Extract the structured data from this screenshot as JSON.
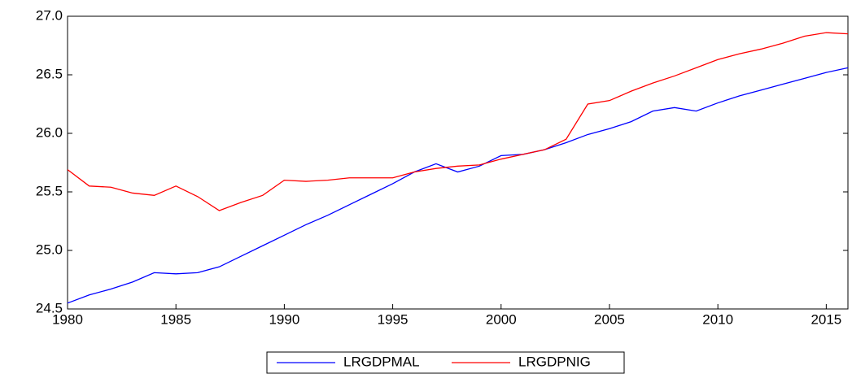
{
  "chart_data": {
    "type": "line",
    "x": [
      1980,
      1981,
      1982,
      1983,
      1984,
      1985,
      1986,
      1987,
      1988,
      1989,
      1990,
      1991,
      1992,
      1993,
      1994,
      1995,
      1996,
      1997,
      1998,
      1999,
      2000,
      2001,
      2002,
      2003,
      2004,
      2005,
      2006,
      2007,
      2008,
      2009,
      2010,
      2011,
      2012,
      2013,
      2014,
      2015,
      2016
    ],
    "series": [
      {
        "name": "LRGDPMAL",
        "color": "#0000ff",
        "values": [
          24.55,
          24.62,
          24.67,
          24.73,
          24.81,
          24.8,
          24.81,
          24.86,
          24.95,
          25.04,
          25.13,
          25.22,
          25.3,
          25.39,
          25.48,
          25.57,
          25.67,
          25.74,
          25.67,
          25.72,
          25.81,
          25.82,
          25.86,
          25.92,
          25.99,
          26.04,
          26.1,
          26.19,
          26.22,
          26.19,
          26.26,
          26.32,
          26.37,
          26.42,
          26.47,
          26.52,
          26.56
        ]
      },
      {
        "name": "LRGDPNIG",
        "color": "#ff0000",
        "values": [
          25.69,
          25.55,
          25.54,
          25.49,
          25.47,
          25.55,
          25.46,
          25.34,
          25.41,
          25.47,
          25.6,
          25.59,
          25.6,
          25.62,
          25.62,
          25.62,
          25.67,
          25.7,
          25.72,
          25.73,
          25.78,
          25.82,
          25.86,
          25.95,
          26.25,
          26.28,
          26.36,
          26.43,
          26.49,
          26.56,
          26.63,
          26.68,
          26.72,
          26.77,
          26.83,
          26.86,
          26.85
        ]
      }
    ],
    "xlim": [
      1980,
      2016
    ],
    "xticks": [
      1980,
      1985,
      1990,
      1995,
      2000,
      2005,
      2010,
      2015
    ],
    "ylim": [
      24.5,
      27.0
    ],
    "yticks": [
      24.5,
      {
        "value": 25,
        "label": "25.0"
      },
      25.5,
      {
        "value": 26,
        "label": "26.0"
      },
      26.5,
      {
        "value": 27,
        "label": "27.0"
      }
    ],
    "grid": false,
    "legend": "bottom"
  }
}
